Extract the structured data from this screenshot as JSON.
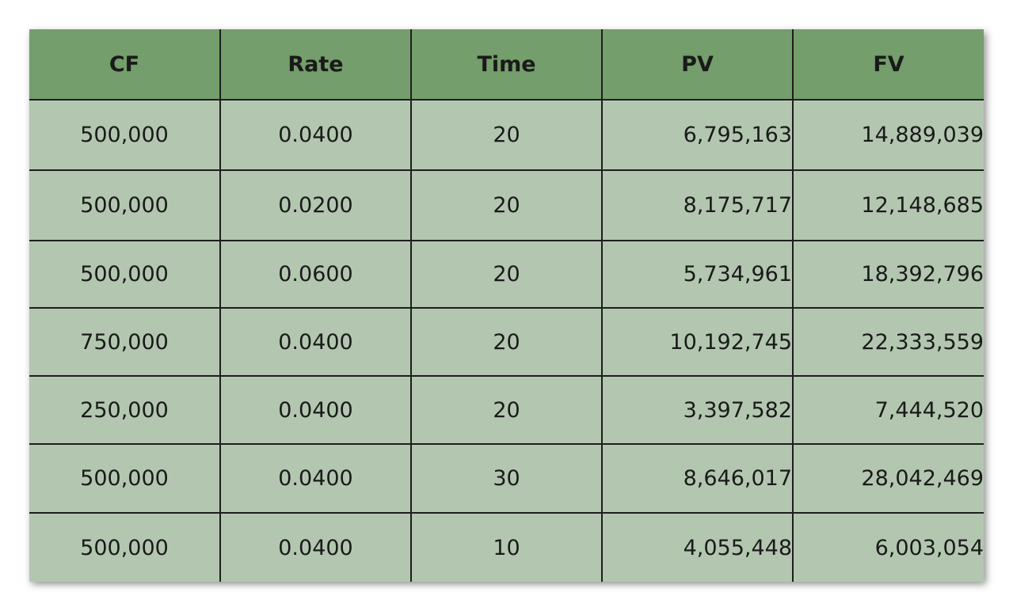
{
  "table": {
    "columns": [
      "CF",
      "Rate",
      "Time",
      "PV",
      "FV"
    ],
    "rows": [
      [
        "500,000",
        "0.0400",
        "20",
        "6,795,163",
        "14,889,039"
      ],
      [
        "500,000",
        "0.0200",
        "20",
        "8,175,717",
        "12,148,685"
      ],
      [
        "500,000",
        "0.0600",
        "20",
        "5,734,961",
        "18,392,796"
      ],
      [
        "750,000",
        "0.0400",
        "20",
        "10,192,745",
        "22,333,559"
      ],
      [
        "250,000",
        "0.0400",
        "20",
        "3,397,582",
        "7,444,520"
      ],
      [
        "500,000",
        "0.0400",
        "30",
        "8,646,017",
        "28,042,469"
      ],
      [
        "500,000",
        "0.0400",
        "10",
        "4,055,448",
        "6,003,054"
      ]
    ]
  },
  "colors": {
    "header_bg": "#749e6b",
    "cell_bg": "#b3c7b0",
    "grid_line": "#1e1e1e",
    "text": "#1a1a1a"
  }
}
